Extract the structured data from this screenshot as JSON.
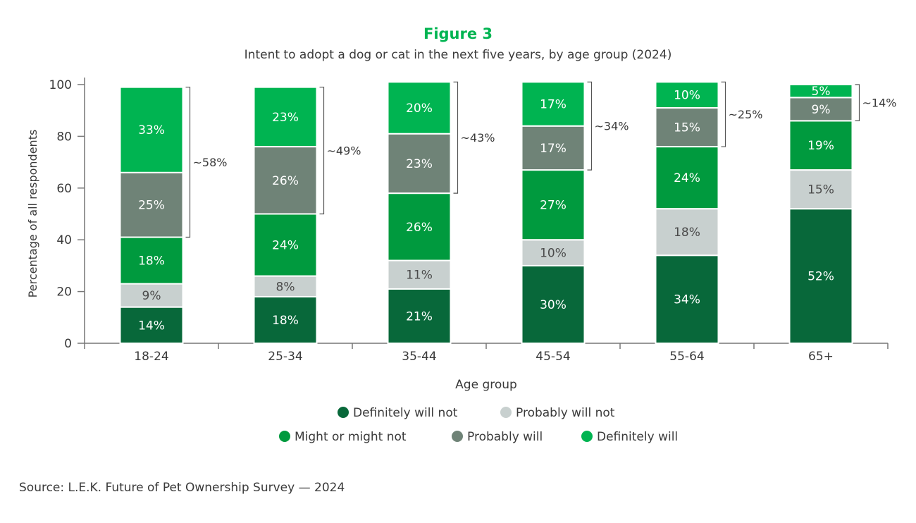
{
  "chart_data": {
    "type": "bar",
    "stacked": true,
    "title": "Figure 3",
    "subtitle": "Intent to adopt a dog or cat in the next five years, by age group (2024)",
    "xlabel": "Age group",
    "ylabel": "Percentage of all respondents",
    "ylim": [
      0,
      100
    ],
    "yticks": [
      0,
      20,
      40,
      60,
      80,
      100
    ],
    "grid": false,
    "legend_position": "bottom",
    "categories": [
      "18-24",
      "25-34",
      "35-44",
      "45-54",
      "55-64",
      "65+"
    ],
    "series": [
      {
        "name": "Definitely will not",
        "color": "#08683A",
        "label_color": "#ffffff",
        "values": [
          14,
          18,
          21,
          30,
          34,
          52
        ]
      },
      {
        "name": "Probably will not",
        "color": "#C8D0CF",
        "label_color": "#4a4a4a",
        "values": [
          9,
          8,
          11,
          10,
          18,
          15
        ]
      },
      {
        "name": "Might or might not",
        "color": "#009A3E",
        "label_color": "#ffffff",
        "values": [
          18,
          24,
          26,
          27,
          24,
          19
        ]
      },
      {
        "name": "Probably will",
        "color": "#6F8377",
        "label_color": "#ffffff",
        "values": [
          25,
          26,
          23,
          17,
          15,
          9
        ]
      },
      {
        "name": "Definitely will",
        "color": "#00B451",
        "label_color": "#ffffff",
        "values": [
          33,
          23,
          20,
          17,
          10,
          5
        ]
      }
    ],
    "bracket_annotations": [
      "~58%",
      "~49%",
      "~43%",
      "~34%",
      "~25%",
      "~14%"
    ],
    "title_color": "#00B451"
  },
  "source": "Source: L.E.K. Future of Pet Ownership Survey — 2024"
}
